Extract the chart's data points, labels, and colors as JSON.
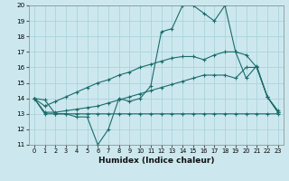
{
  "xlabel": "Humidex (Indice chaleur)",
  "bg_color": "#cce8ee",
  "grid_color": "#aad4dc",
  "line_color": "#1a6b6b",
  "xlim": [
    -0.5,
    23.5
  ],
  "ylim": [
    11,
    20
  ],
  "xticks": [
    0,
    1,
    2,
    3,
    4,
    5,
    6,
    7,
    8,
    9,
    10,
    11,
    12,
    13,
    14,
    15,
    16,
    17,
    18,
    19,
    20,
    21,
    22,
    23
  ],
  "yticks": [
    11,
    12,
    13,
    14,
    15,
    16,
    17,
    18,
    19,
    20
  ],
  "s1": [
    14.0,
    13.9,
    13.0,
    13.0,
    12.8,
    12.8,
    11.0,
    12.0,
    14.0,
    13.8,
    14.0,
    14.8,
    18.3,
    18.5,
    20.0,
    20.0,
    19.5,
    19.0,
    20.0,
    17.0,
    16.8,
    16.0,
    14.1,
    13.2
  ],
  "s2": [
    14.0,
    13.0,
    13.0,
    13.0,
    13.0,
    13.0,
    13.0,
    13.0,
    13.0,
    13.0,
    13.0,
    13.0,
    13.0,
    13.0,
    13.0,
    13.0,
    13.0,
    13.0,
    13.0,
    13.0,
    13.0,
    13.0,
    13.0,
    13.0
  ],
  "s3": [
    14.0,
    13.5,
    13.8,
    14.1,
    14.4,
    14.7,
    15.0,
    15.2,
    15.5,
    15.7,
    16.0,
    16.2,
    16.4,
    16.6,
    16.7,
    16.7,
    16.5,
    16.8,
    17.0,
    17.0,
    15.3,
    16.1,
    14.1,
    13.1
  ],
  "s4": [
    14.0,
    13.1,
    13.1,
    13.2,
    13.3,
    13.4,
    13.5,
    13.7,
    13.9,
    14.1,
    14.3,
    14.5,
    14.7,
    14.9,
    15.1,
    15.3,
    15.5,
    15.5,
    15.5,
    15.3,
    16.0,
    16.0,
    14.1,
    13.1
  ]
}
